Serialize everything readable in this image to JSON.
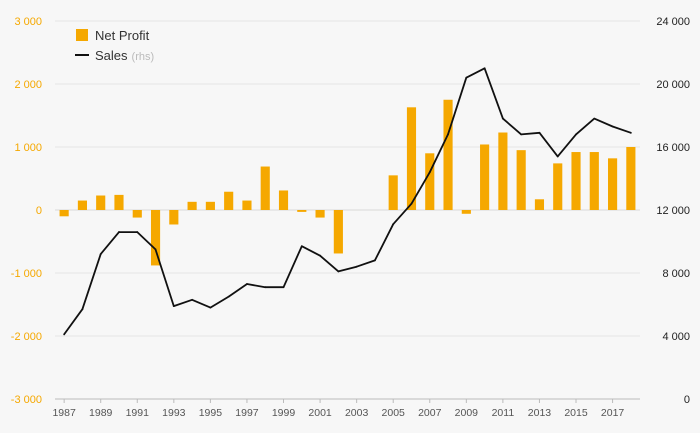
{
  "chart_data": {
    "type": "bar+line",
    "x": [
      1987,
      1988,
      1989,
      1990,
      1991,
      1992,
      1993,
      1994,
      1995,
      1996,
      1997,
      1998,
      1999,
      2000,
      2001,
      2002,
      2003,
      2004,
      2005,
      2006,
      2007,
      2008,
      2009,
      2010,
      2011,
      2012,
      2013,
      2014,
      2015,
      2016,
      2017,
      2018
    ],
    "x_tick_labels": [
      "1987",
      "1989",
      "1991",
      "1993",
      "1995",
      "1997",
      "1999",
      "2001",
      "2003",
      "2005",
      "2007",
      "2009",
      "2011",
      "2013",
      "2015",
      "2017"
    ],
    "left_axis": {
      "ylim": [
        -3000,
        3000
      ],
      "ticks": [
        -3000,
        -2000,
        -1000,
        0,
        1000,
        2000,
        3000
      ],
      "tick_labels": [
        "-3 000",
        "-2 000",
        "-1 000",
        "0",
        "1 000",
        "2 000",
        "3 000"
      ],
      "color": "#f5a800"
    },
    "right_axis": {
      "ylim": [
        0,
        24000
      ],
      "ticks": [
        0,
        4000,
        8000,
        12000,
        16000,
        20000,
        24000
      ],
      "tick_labels": [
        "0",
        "4 000",
        "8 000",
        "12 000",
        "16 000",
        "20 000",
        "24 000"
      ]
    },
    "series": [
      {
        "name": "Net Profit",
        "kind": "bar",
        "axis": "left",
        "color": "#f5a800",
        "values": [
          -100,
          150,
          230,
          240,
          -120,
          -880,
          -230,
          130,
          130,
          290,
          150,
          690,
          310,
          -30,
          -120,
          -690,
          0,
          0,
          550,
          1630,
          900,
          1750,
          -60,
          1040,
          1230,
          950,
          170,
          740,
          920,
          920,
          820,
          1000
        ]
      },
      {
        "name": "Sales",
        "name_suffix": "(rhs)",
        "kind": "line",
        "axis": "right",
        "color": "#111111",
        "values": [
          4100,
          5700,
          9200,
          10600,
          10600,
          9500,
          5900,
          6300,
          5800,
          6500,
          7300,
          7100,
          7100,
          9700,
          9100,
          8100,
          8400,
          8800,
          11100,
          12400,
          14400,
          16800,
          20400,
          21000,
          17800,
          16800,
          16900,
          15400,
          16800,
          17800,
          17300,
          16900
        ]
      }
    ]
  }
}
